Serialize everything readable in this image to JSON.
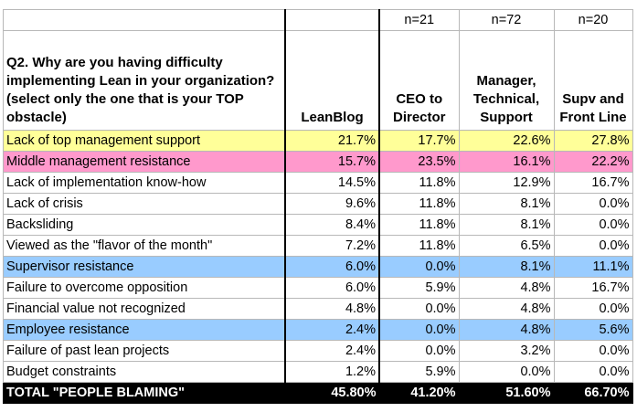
{
  "table": {
    "n_labels": [
      "",
      "",
      "n=21",
      "n=72",
      "n=20"
    ],
    "question": "Q2. Why are you having difficulty implementing Lean in your organization? (select only the one that is your TOP obstacle)",
    "headers": [
      "LeanBlog",
      "CEO to Director",
      "Manager, Technical, Support",
      "Supv and Front Line"
    ],
    "rows": [
      {
        "label": "Lack of top management support",
        "values": [
          "21.7%",
          "17.7%",
          "22.6%",
          "27.8%"
        ],
        "highlight": "#ffff99"
      },
      {
        "label": "Middle management resistance",
        "values": [
          "15.7%",
          "23.5%",
          "16.1%",
          "22.2%"
        ],
        "highlight": "#ff99cc"
      },
      {
        "label": "Lack of implementation know-how",
        "values": [
          "14.5%",
          "11.8%",
          "12.9%",
          "16.7%"
        ],
        "highlight": ""
      },
      {
        "label": "Lack of crisis",
        "values": [
          "9.6%",
          "11.8%",
          "8.1%",
          "0.0%"
        ],
        "highlight": ""
      },
      {
        "label": "Backsliding",
        "values": [
          "8.4%",
          "11.8%",
          "8.1%",
          "0.0%"
        ],
        "highlight": ""
      },
      {
        "label": "Viewed as the \"flavor of the month\"",
        "values": [
          "7.2%",
          "11.8%",
          "6.5%",
          "0.0%"
        ],
        "highlight": ""
      },
      {
        "label": "Supervisor resistance",
        "values": [
          "6.0%",
          "0.0%",
          "8.1%",
          "11.1%"
        ],
        "highlight": "#99ccff"
      },
      {
        "label": "Failure to overcome opposition",
        "values": [
          "6.0%",
          "5.9%",
          "4.8%",
          "16.7%"
        ],
        "highlight": ""
      },
      {
        "label": "Financial value not recognized",
        "values": [
          "4.8%",
          "0.0%",
          "4.8%",
          "0.0%"
        ],
        "highlight": ""
      },
      {
        "label": "Employee resistance",
        "values": [
          "2.4%",
          "0.0%",
          "4.8%",
          "5.6%"
        ],
        "highlight": "#99ccff"
      },
      {
        "label": "Failure of past lean projects",
        "values": [
          "2.4%",
          "0.0%",
          "3.2%",
          "0.0%"
        ],
        "highlight": ""
      },
      {
        "label": "Budget constraints",
        "values": [
          "1.2%",
          "5.9%",
          "0.0%",
          "0.0%"
        ],
        "highlight": ""
      }
    ],
    "total": {
      "label": "TOTAL \"PEOPLE BLAMING\"",
      "values": [
        "45.80%",
        "41.20%",
        "51.60%",
        "66.70%"
      ]
    }
  }
}
